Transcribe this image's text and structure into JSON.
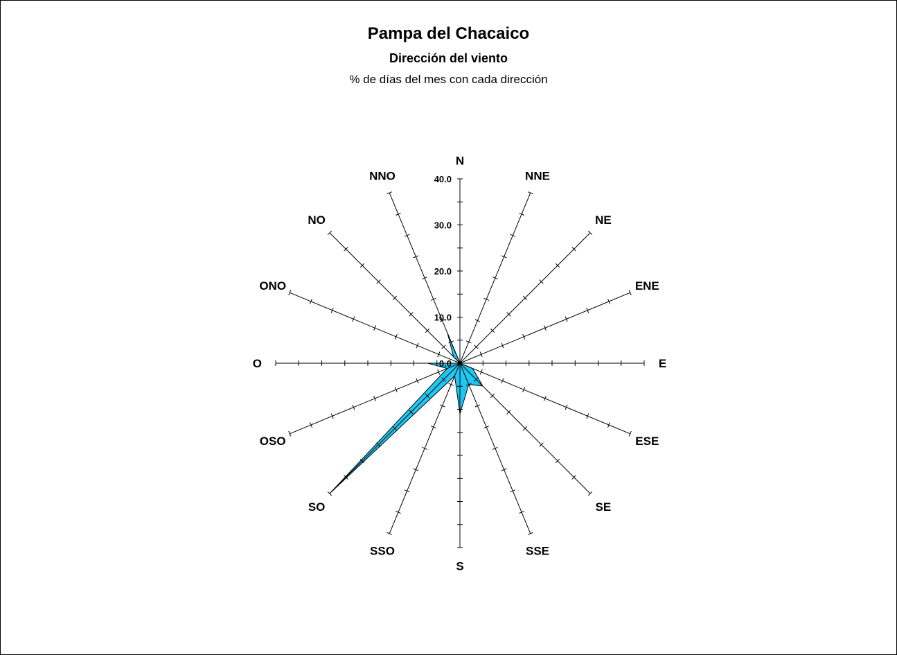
{
  "chart_data": {
    "type": "radar",
    "title": "Pampa del Chacaico",
    "subtitle": "Dirección del viento",
    "caption": "% de días del mes con cada dirección",
    "directions": [
      "N",
      "NNE",
      "NE",
      "ENE",
      "E",
      "ESE",
      "SE",
      "SSE",
      "S",
      "SSO",
      "SO",
      "OSO",
      "O",
      "ONO",
      "NO",
      "NNO"
    ],
    "radial_ticks": [
      "0.0",
      "10.0",
      "20.0",
      "30.0",
      "40.0"
    ],
    "rlim": [
      0,
      40
    ],
    "tick_step": 5,
    "series": [
      {
        "values": [
          0,
          0,
          0,
          0,
          0,
          3,
          7,
          5,
          11,
          3,
          40,
          3,
          7,
          0,
          2,
          7
        ]
      }
    ],
    "colors": {
      "fill": "#1fc8f2",
      "stroke": "#000000",
      "axis": "#000000"
    }
  }
}
